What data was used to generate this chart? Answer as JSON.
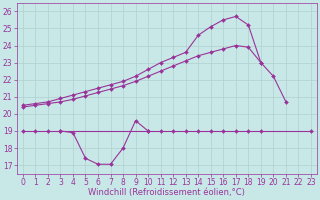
{
  "background_color": "#c8e8e8",
  "grid_color": "#b0d0d0",
  "line_color": "#993399",
  "marker": "D",
  "markersize": 2,
  "linewidth": 0.8,
  "xlabel": "Windchill (Refroidissement éolien,°C)",
  "xlabel_color": "#993399",
  "xlabel_fontsize": 6,
  "tick_fontsize": 5.5,
  "xlim": [
    -0.5,
    23.5
  ],
  "ylim": [
    16.5,
    26.5
  ],
  "yticks": [
    17,
    18,
    19,
    20,
    21,
    22,
    23,
    24,
    25,
    26
  ],
  "xticks": [
    0,
    1,
    2,
    3,
    4,
    5,
    6,
    7,
    8,
    9,
    10,
    11,
    12,
    13,
    14,
    15,
    16,
    17,
    18,
    19,
    20,
    21,
    22,
    23
  ],
  "series1_x": [
    0,
    1,
    2,
    3,
    4,
    5,
    6,
    7,
    8,
    9,
    10,
    11,
    12,
    13,
    14,
    15,
    16,
    17,
    18,
    19,
    20,
    21
  ],
  "series1_y": [
    20.5,
    20.6,
    20.7,
    20.9,
    21.1,
    21.3,
    21.5,
    21.7,
    21.9,
    22.2,
    22.6,
    23.0,
    23.3,
    23.6,
    24.6,
    25.1,
    25.5,
    25.7,
    25.2,
    23.0,
    22.2,
    20.7
  ],
  "series2_x": [
    0,
    1,
    2,
    3,
    4,
    5,
    6,
    7,
    8,
    9,
    10,
    11,
    12,
    13,
    14,
    15,
    16,
    17,
    18,
    19
  ],
  "series2_y": [
    20.4,
    20.5,
    20.6,
    20.7,
    20.85,
    21.05,
    21.25,
    21.45,
    21.65,
    21.9,
    22.2,
    22.5,
    22.8,
    23.1,
    23.4,
    23.6,
    23.8,
    24.0,
    23.9,
    23.0
  ],
  "series3_x": [
    0,
    1,
    2,
    3,
    10,
    11,
    12,
    13,
    14,
    15,
    16,
    17,
    18,
    19,
    23
  ],
  "series3_y": [
    19.0,
    19.0,
    19.0,
    19.0,
    19.0,
    19.0,
    19.0,
    19.0,
    19.0,
    19.0,
    19.0,
    19.0,
    19.0,
    19.0,
    19.0
  ],
  "series4_x": [
    3,
    4,
    5,
    6,
    7,
    8,
    9,
    10
  ],
  "series4_y": [
    19.0,
    18.9,
    17.4,
    17.05,
    17.05,
    18.0,
    19.6,
    19.0
  ]
}
